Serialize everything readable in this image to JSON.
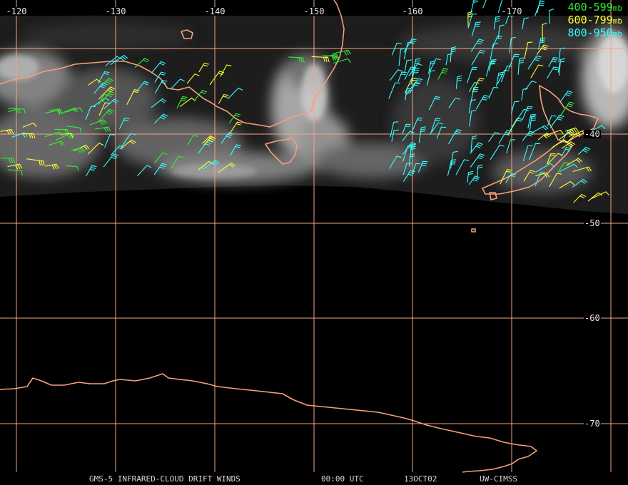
{
  "map": {
    "lon_labels": [
      {
        "value": -120,
        "text": "-120"
      },
      {
        "value": -130,
        "text": "-130"
      },
      {
        "value": -140,
        "text": "-140"
      },
      {
        "value": -150,
        "text": "-150"
      },
      {
        "value": -160,
        "text": "-160"
      },
      {
        "value": -170,
        "text": "-170"
      }
    ],
    "lat_labels": [
      {
        "value": -40,
        "text": "-40"
      },
      {
        "value": -50,
        "text": "-50"
      },
      {
        "value": -60,
        "text": "-60"
      },
      {
        "value": -70,
        "text": "-70"
      }
    ],
    "grid_color": "#f4a582",
    "coast_color": "#f6a07a",
    "background_color": "#000000"
  },
  "legend": [
    {
      "range": "400-599",
      "unit": "mb",
      "color": "#33ee33"
    },
    {
      "range": "600-799",
      "unit": "mb",
      "color": "#ffff33"
    },
    {
      "range": "800-950",
      "unit": "mb",
      "color": "#33ffff"
    }
  ],
  "footer": {
    "product": "GMS-5 INFRARED-CLOUD DRIFT WINDS",
    "time": "00:00 UTC",
    "date": "13OCT02",
    "source": "UW-CIMSS"
  }
}
